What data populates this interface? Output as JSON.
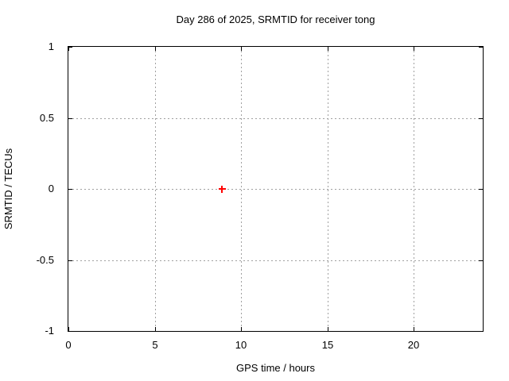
{
  "chart_data": {
    "type": "scatter",
    "title": "Day 286 of 2025, SRMTID for receiver tong",
    "xlabel": "GPS time / hours",
    "ylabel": "SRMTID / TECUs",
    "xlim": [
      0,
      24
    ],
    "ylim": [
      -1,
      1
    ],
    "xticks": [
      0,
      5,
      10,
      15,
      20
    ],
    "yticks": [
      -1,
      -0.5,
      0,
      0.5,
      1
    ],
    "grid": true,
    "legend": "none",
    "series": [
      {
        "name": "SRMTID",
        "marker": "plus",
        "color": "#ff0000",
        "points": [
          {
            "x": 8.9,
            "y": 0
          }
        ]
      }
    ]
  },
  "colors": {
    "background": "#ffffff",
    "axis": "#000000",
    "grid": "#a0a0a0",
    "text": "#000000",
    "marker": "#ff0000"
  }
}
